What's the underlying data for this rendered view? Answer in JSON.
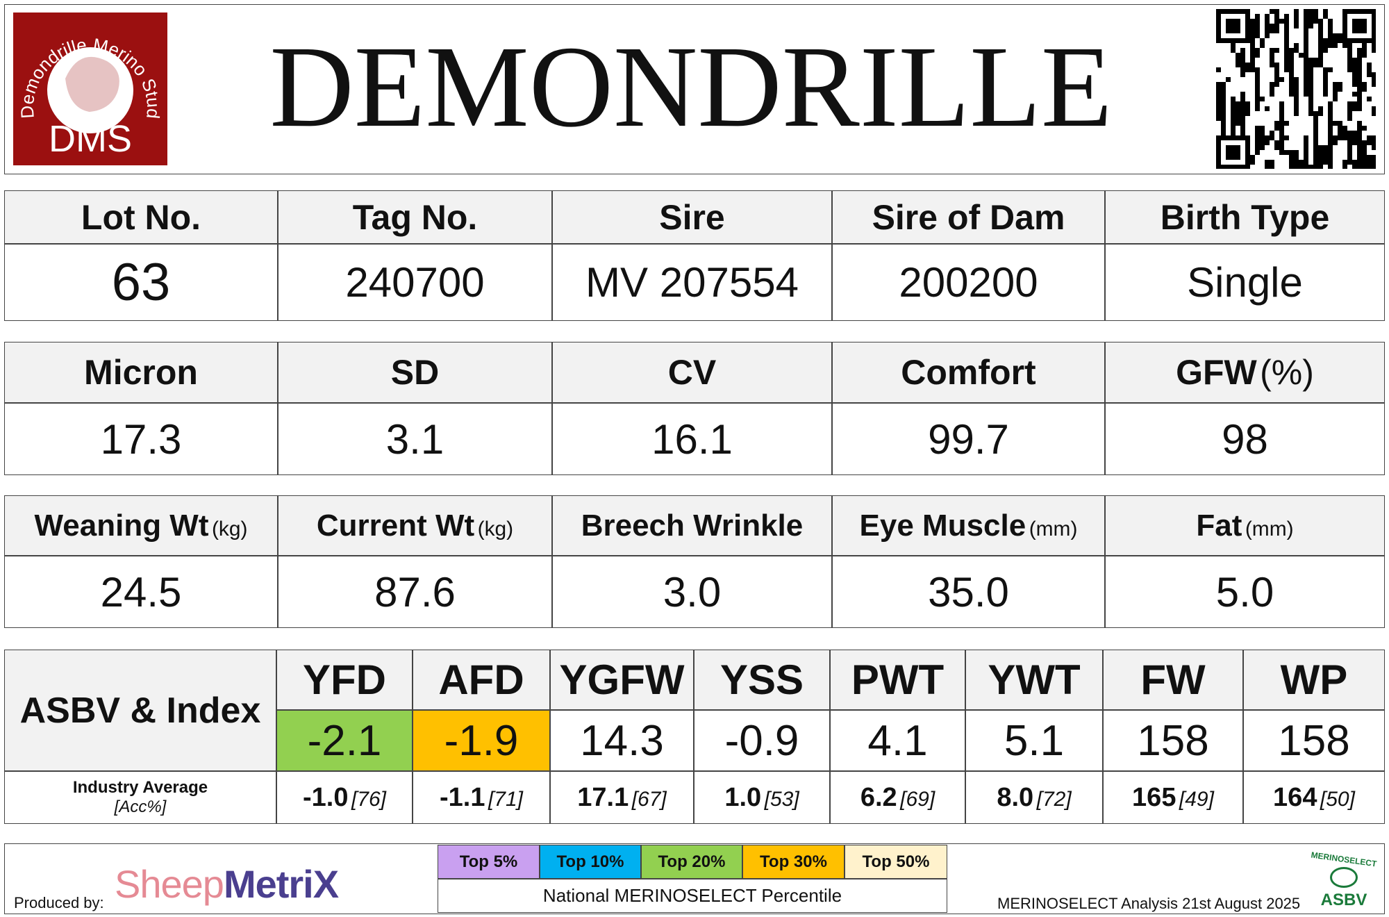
{
  "header": {
    "title": "DEMONDRILLE",
    "logo": {
      "arc_text": "Demondrille Merino Stud",
      "initials": "DMS"
    }
  },
  "details": {
    "headers": [
      "Lot No.",
      "Tag No.",
      "Sire",
      "Sire of Dam",
      "Birth Type"
    ],
    "values": [
      "63",
      "240700",
      "MV 207554",
      "200200",
      "Single"
    ]
  },
  "fleece": {
    "headers": [
      {
        "label": "Micron"
      },
      {
        "label": "SD"
      },
      {
        "label": "CV"
      },
      {
        "label": "Comfort"
      },
      {
        "label": "GFW",
        "unit": "(%)"
      }
    ],
    "values": [
      "17.3",
      "3.1",
      "16.1",
      "99.7",
      "98"
    ]
  },
  "body": {
    "headers": [
      {
        "label": "Weaning Wt",
        "unit": "(kg)"
      },
      {
        "label": "Current Wt",
        "unit": "(kg)"
      },
      {
        "label": "Breech Wrinkle"
      },
      {
        "label": "Eye Muscle",
        "unit": "(mm)"
      },
      {
        "label": "Fat",
        "unit": "(mm)"
      }
    ],
    "values": [
      "24.5",
      "87.6",
      "3.0",
      "35.0",
      "5.0"
    ]
  },
  "asbv": {
    "title": "ASBV & Index",
    "traits": [
      "YFD",
      "AFD",
      "YGFW",
      "YSS",
      "PWT",
      "YWT",
      "FW",
      "WP"
    ],
    "values": [
      "-2.1",
      "-1.9",
      "14.3",
      "-0.9",
      "4.1",
      "5.1",
      "158",
      "158"
    ],
    "cell_colors": [
      "#92d050",
      "#ffc000",
      "#ffffff",
      "#ffffff",
      "#ffffff",
      "#ffffff",
      "#ffffff",
      "#ffffff"
    ],
    "industry_label": "Industry Average",
    "acc_label": "[Acc%]",
    "averages": [
      {
        "value": "-1.0",
        "acc": "[76]"
      },
      {
        "value": "-1.1",
        "acc": "[71]"
      },
      {
        "value": "17.1",
        "acc": "[67]"
      },
      {
        "value": "1.0",
        "acc": "[53]"
      },
      {
        "value": "6.2",
        "acc": "[69]"
      },
      {
        "value": "8.0",
        "acc": "[72]"
      },
      {
        "value": "165",
        "acc": "[49]"
      },
      {
        "value": "164",
        "acc": "[50]"
      }
    ]
  },
  "footer": {
    "produced_by": "Produced by:",
    "brand": {
      "first": "Sheep",
      "second": "MetriX"
    },
    "percentiles": [
      {
        "label": "Top 5%",
        "color": "#c9a0f0"
      },
      {
        "label": "Top 10%",
        "color": "#00b0f0"
      },
      {
        "label": "Top 20%",
        "color": "#92d050"
      },
      {
        "label": "Top 30%",
        "color": "#ffc000"
      },
      {
        "label": "Top 50%",
        "color": "#fff2cc"
      }
    ],
    "percentile_caption": "National MERINOSELECT Percentile",
    "analysis": "MERINOSELECT Analysis 21st August 2025",
    "badge": {
      "arc": "MERINOSELECT",
      "text": "ASBV"
    }
  }
}
